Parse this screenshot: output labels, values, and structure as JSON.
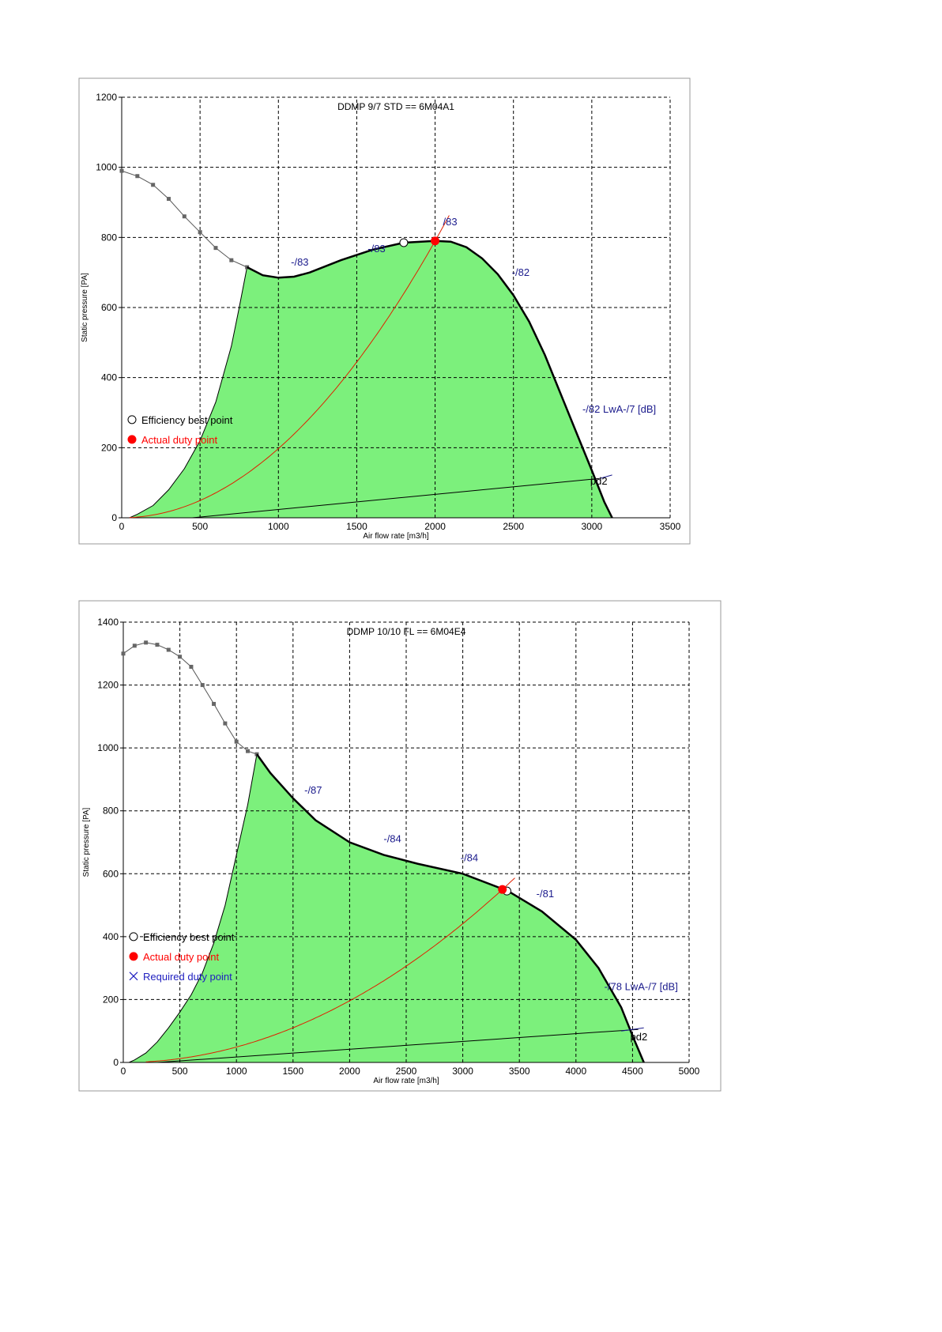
{
  "chart_data": [
    {
      "type": "line",
      "title": "DDMP 9/7 STD == 6M04A1",
      "xlabel": "Air flow rate [m3/h]",
      "ylabel": "Static pressure [PA]",
      "xlim": [
        0,
        3500
      ],
      "ylim": [
        0,
        1200
      ],
      "xticks": [
        0,
        500,
        1000,
        1500,
        2000,
        2500,
        3000,
        3500
      ],
      "yticks": [
        0,
        200,
        400,
        600,
        800,
        1000,
        1200
      ],
      "grid": true,
      "fan_curve_gray": [
        [
          0,
          990
        ],
        [
          100,
          975
        ],
        [
          200,
          950
        ],
        [
          300,
          910
        ],
        [
          400,
          860
        ],
        [
          500,
          815
        ],
        [
          600,
          770
        ],
        [
          700,
          735
        ],
        [
          800,
          715
        ]
      ],
      "fan_curve": [
        [
          800,
          715
        ],
        [
          900,
          692
        ],
        [
          1000,
          685
        ],
        [
          1100,
          688
        ],
        [
          1200,
          700
        ],
        [
          1400,
          735
        ],
        [
          1600,
          765
        ],
        [
          1800,
          785
        ],
        [
          2000,
          790
        ],
        [
          2100,
          788
        ],
        [
          2200,
          772
        ],
        [
          2300,
          740
        ],
        [
          2400,
          695
        ],
        [
          2500,
          635
        ],
        [
          2600,
          560
        ],
        [
          2700,
          465
        ],
        [
          2800,
          355
        ],
        [
          2900,
          245
        ],
        [
          3000,
          135
        ],
        [
          3080,
          45
        ],
        [
          3130,
          0
        ]
      ],
      "min_curve": [
        [
          800,
          715
        ],
        [
          750,
          600
        ],
        [
          700,
          490
        ],
        [
          600,
          330
        ],
        [
          500,
          220
        ],
        [
          400,
          140
        ],
        [
          300,
          80
        ],
        [
          200,
          35
        ],
        [
          100,
          10
        ],
        [
          50,
          0
        ]
      ],
      "system_curve": {
        "k": 790,
        "ref": 2000,
        "from": 50,
        "to": 2100
      },
      "pd2": [
        [
          450,
          0
        ],
        [
          3050,
          112
        ]
      ],
      "pd2_ext": [
        [
          3050,
          112
        ],
        [
          3130,
          122
        ]
      ],
      "efficiency_best": [
        1800,
        785
      ],
      "duty_point": [
        2000,
        790
      ],
      "required_point": null,
      "annotations": [
        {
          "text": "-/83",
          "x": 1080,
          "y": 720
        },
        {
          "text": "-/83",
          "x": 1570,
          "y": 758
        },
        {
          "text": "/83",
          "x": 2050,
          "y": 835
        },
        {
          "text": "-/82",
          "x": 2490,
          "y": 690
        },
        {
          "text": "-/82  LwA-/7 [dB]",
          "x": 2940,
          "y": 300
        },
        {
          "text": "pd2",
          "x": 2990,
          "y": 95,
          "color": "#000"
        }
      ],
      "legend": [
        "Efficiency best point",
        "Actual duty point"
      ],
      "legend_placement": "left"
    },
    {
      "type": "line",
      "title": "DDMP 10/10 FL == 6M04E4",
      "xlabel": "Air flow rate [m3/h]",
      "ylabel": "Static pressure [PA]",
      "xlim": [
        0,
        5000
      ],
      "ylim": [
        0,
        1400
      ],
      "xticks": [
        0,
        500,
        1000,
        1500,
        2000,
        2500,
        3000,
        3500,
        4000,
        4500,
        5000
      ],
      "yticks": [
        0,
        200,
        400,
        600,
        800,
        1000,
        1200,
        1400
      ],
      "grid": true,
      "fan_curve_gray": [
        [
          0,
          1300
        ],
        [
          100,
          1325
        ],
        [
          200,
          1335
        ],
        [
          300,
          1328
        ],
        [
          400,
          1312
        ],
        [
          500,
          1290
        ],
        [
          600,
          1258
        ],
        [
          700,
          1200
        ],
        [
          800,
          1140
        ],
        [
          900,
          1078
        ],
        [
          1000,
          1020
        ],
        [
          1100,
          990
        ],
        [
          1180,
          980
        ]
      ],
      "fan_curve": [
        [
          1180,
          980
        ],
        [
          1300,
          920
        ],
        [
          1500,
          840
        ],
        [
          1700,
          770
        ],
        [
          2000,
          700
        ],
        [
          2300,
          660
        ],
        [
          2600,
          632
        ],
        [
          3000,
          600
        ],
        [
          3400,
          545
        ],
        [
          3700,
          480
        ],
        [
          4000,
          390
        ],
        [
          4200,
          300
        ],
        [
          4400,
          175
        ],
        [
          4500,
          85
        ],
        [
          4600,
          0
        ]
      ],
      "min_curve": [
        [
          1180,
          980
        ],
        [
          1100,
          820
        ],
        [
          1000,
          660
        ],
        [
          900,
          500
        ],
        [
          800,
          380
        ],
        [
          700,
          285
        ],
        [
          600,
          215
        ],
        [
          500,
          160
        ],
        [
          400,
          110
        ],
        [
          300,
          65
        ],
        [
          200,
          30
        ],
        [
          100,
          8
        ],
        [
          50,
          0
        ]
      ],
      "system_curve": {
        "k": 550,
        "ref": 3350,
        "from": 200,
        "to": 3470
      },
      "pd2": [
        [
          300,
          0
        ],
        [
          4550,
          105
        ]
      ],
      "pd2_ext": [
        [
          4400,
          100
        ],
        [
          4600,
          110
        ]
      ],
      "efficiency_best": [
        3390,
        545
      ],
      "duty_point": [
        3350,
        550
      ],
      "required_point": null,
      "annotations": [
        {
          "text": "-/87",
          "x": 1600,
          "y": 855
        },
        {
          "text": "-/84",
          "x": 2300,
          "y": 700
        },
        {
          "text": "-/84",
          "x": 2980,
          "y": 640
        },
        {
          "text": "-/81",
          "x": 3650,
          "y": 525
        },
        {
          "text": "-/78  LwA-/7 [dB]",
          "x": 4250,
          "y": 230
        },
        {
          "text": "pd2",
          "x": 4480,
          "y": 70,
          "color": "#000"
        }
      ],
      "legend": [
        "Efficiency best point",
        "Actual duty point",
        "Required duty point"
      ],
      "legend_placement": "left"
    }
  ],
  "colors": {
    "fill": "#7cf07c",
    "duty": "#ff0000",
    "annot": "#1a1a8c",
    "legend_req": "#2020c0"
  }
}
